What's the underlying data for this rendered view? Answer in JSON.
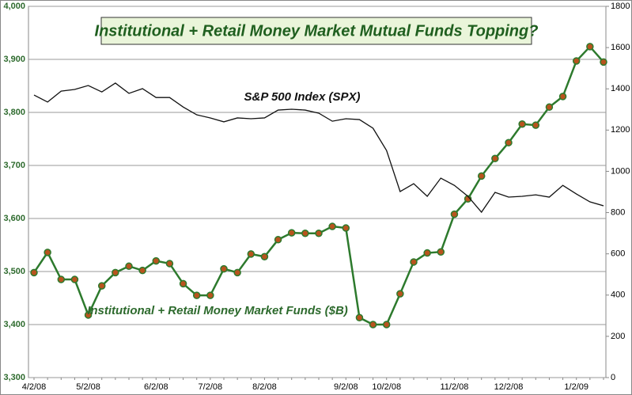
{
  "chart_data": {
    "type": "line",
    "title": "Institutional + Retail Money Market Mutual Funds Topping?",
    "categories": [
      "4/2/08",
      null,
      null,
      null,
      "5/2/08",
      null,
      null,
      null,
      null,
      "6/2/08",
      null,
      null,
      null,
      "7/2/08",
      null,
      null,
      null,
      "8/2/08",
      null,
      null,
      null,
      null,
      null,
      "9/2/08",
      null,
      null,
      "10/2/08",
      null,
      null,
      null,
      null,
      "11/2/08",
      null,
      null,
      null,
      "12/2/08",
      null,
      null,
      null,
      null,
      "1/2/09",
      null,
      null
    ],
    "series": [
      {
        "name": "Institutional + Retail Money Market Funds ($B)",
        "color": "#2d7a2d",
        "marker_color": "#b8541e",
        "axis": "y",
        "values": [
          3498,
          3536,
          3485,
          3485,
          3418,
          3473,
          3498,
          3510,
          3502,
          3520,
          3515,
          3477,
          3455,
          3455,
          3505,
          3498,
          3533,
          3528,
          3560,
          3573,
          3572,
          3572,
          3585,
          3582,
          3413,
          3400,
          3400,
          3458,
          3518,
          3535,
          3537,
          3608,
          3637,
          3680,
          3713,
          3743,
          3778,
          3776,
          3810,
          3830,
          3897,
          3924,
          3895
        ]
      },
      {
        "name": "S&P 500 Index (SPX)",
        "color": "#111111",
        "axis": "y2",
        "values": [
          1370,
          1336,
          1389,
          1397,
          1416,
          1385,
          1428,
          1378,
          1401,
          1358,
          1358,
          1312,
          1274,
          1259,
          1240,
          1259,
          1255,
          1259,
          1297,
          1301,
          1297,
          1282,
          1243,
          1255,
          1251,
          1209,
          1101,
          902,
          940,
          879,
          967,
          932,
          879,
          802,
          898,
          875,
          879,
          886,
          875,
          932,
          890,
          852,
          833
        ]
      }
    ],
    "ylim": [
      3300,
      4000
    ],
    "yticks": [
      {
        "value": 3300,
        "label": "3,300"
      },
      {
        "value": 3400,
        "label": "3,400"
      },
      {
        "value": 3500,
        "label": "3,500"
      },
      {
        "value": 3600,
        "label": "3,600"
      },
      {
        "value": 3700,
        "label": "3,700"
      },
      {
        "value": 3800,
        "label": "3,800"
      },
      {
        "value": 3900,
        "label": "3,900"
      },
      {
        "value": 4000,
        "label": "4,000"
      }
    ],
    "y2lim": [
      0,
      1800
    ],
    "y2ticks": [
      0,
      200,
      400,
      600,
      800,
      1000,
      1200,
      1400,
      1600,
      1800
    ],
    "grid": true
  }
}
